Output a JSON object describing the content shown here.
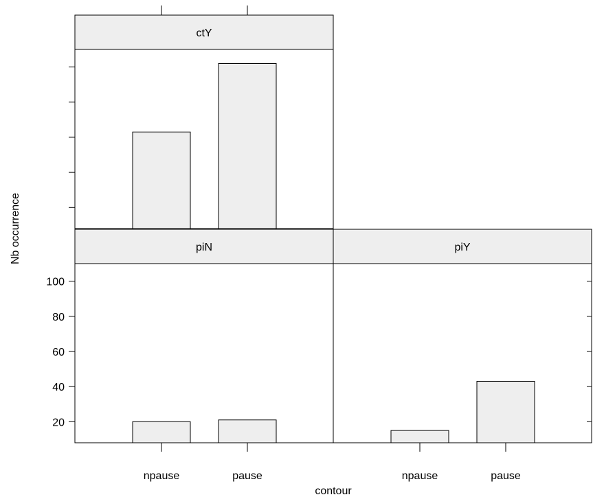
{
  "chart_data": {
    "type": "bar",
    "xlabel": "contour",
    "ylabel": "Nb occurrence",
    "ylim": [
      8,
      110
    ],
    "yticks": [
      20,
      40,
      60,
      80,
      100
    ],
    "categories": [
      "npause",
      "pause"
    ],
    "panels": [
      {
        "name": "ctY",
        "values": [
          63,
          102
        ]
      },
      {
        "name": "piN",
        "values": [
          20,
          21
        ]
      },
      {
        "name": "piY",
        "values": [
          15,
          43
        ]
      }
    ],
    "colors": {
      "bar_fill": "#eeeeee",
      "bar_stroke": "#000000",
      "strip_fill": "#eeeeee"
    }
  }
}
